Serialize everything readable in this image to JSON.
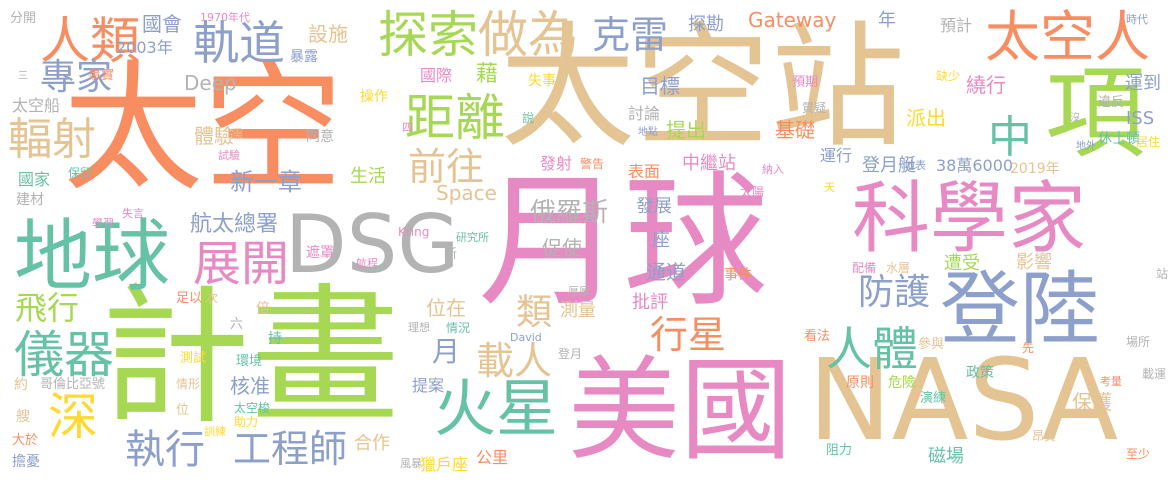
{
  "palette": {
    "orange": "#F98D62",
    "green": "#A6D853",
    "blue": "#8DA0CB",
    "pink": "#E78AC3",
    "tan": "#E5C494",
    "yellow": "#FFD92F",
    "teal": "#66C2A5",
    "gray": "#B3B3B3"
  },
  "words": [
    {
      "text": "太空",
      "color": "orange"
    },
    {
      "text": "太空站",
      "color": "tan"
    },
    {
      "text": "月球",
      "color": "pink"
    },
    {
      "text": "計畫",
      "color": "green"
    },
    {
      "text": "DSG",
      "color": "gray"
    },
    {
      "text": "NASA",
      "color": "tan"
    },
    {
      "text": "美國",
      "color": "pink"
    },
    {
      "text": "登陸",
      "color": "blue"
    },
    {
      "text": "科學家",
      "color": "pink"
    },
    {
      "text": "地球",
      "color": "teal"
    },
    {
      "text": "太空人",
      "color": "orange"
    },
    {
      "text": "項",
      "color": "green"
    },
    {
      "text": "探索",
      "color": "green"
    },
    {
      "text": "做為",
      "color": "tan"
    },
    {
      "text": "人類",
      "color": "orange"
    },
    {
      "text": "軌道",
      "color": "blue"
    },
    {
      "text": "克雷",
      "color": "blue"
    },
    {
      "text": "火星",
      "color": "teal"
    },
    {
      "text": "深",
      "color": "yellow"
    },
    {
      "text": "儀器",
      "color": "teal"
    },
    {
      "text": "展開",
      "color": "pink"
    },
    {
      "text": "距離",
      "color": "green"
    },
    {
      "text": "輻射",
      "color": "tan"
    },
    {
      "text": "專家",
      "color": "blue"
    },
    {
      "text": "前往",
      "color": "tan"
    },
    {
      "text": "中",
      "color": "teal"
    },
    {
      "text": "人體",
      "color": "teal"
    },
    {
      "text": "工程師",
      "color": "blue"
    },
    {
      "text": "執行",
      "color": "blue"
    },
    {
      "text": "載人",
      "color": "tan"
    },
    {
      "text": "行星",
      "color": "orange"
    },
    {
      "text": "防護",
      "color": "blue"
    },
    {
      "text": "飛行",
      "color": "green"
    },
    {
      "text": "航太總署",
      "color": "blue"
    },
    {
      "text": "新一章",
      "color": "blue"
    },
    {
      "text": "俄羅斯",
      "color": "gray"
    },
    {
      "text": "Gateway",
      "color": "orange"
    },
    {
      "text": "Space",
      "color": "tan"
    },
    {
      "text": "Deep",
      "color": "gray"
    },
    {
      "text": "類",
      "color": "tan"
    },
    {
      "text": "月",
      "color": "blue"
    },
    {
      "text": "國會",
      "color": "blue"
    },
    {
      "text": "2003年",
      "color": "blue"
    },
    {
      "text": "設施",
      "color": "tan"
    },
    {
      "text": "探勘",
      "color": "blue"
    },
    {
      "text": "1970年代",
      "color": "pink"
    },
    {
      "text": "分開",
      "color": "gray"
    },
    {
      "text": "事實",
      "color": "orange"
    },
    {
      "text": "暴露",
      "color": "blue"
    },
    {
      "text": "國際",
      "color": "pink"
    },
    {
      "text": "藉",
      "color": "green"
    },
    {
      "text": "失事",
      "color": "yellow"
    },
    {
      "text": "目標",
      "color": "blue"
    },
    {
      "text": "預期",
      "color": "pink"
    },
    {
      "text": "繞行",
      "color": "pink"
    },
    {
      "text": "運到",
      "color": "blue"
    },
    {
      "text": "預計",
      "color": "gray"
    },
    {
      "text": "時代",
      "color": "blue"
    },
    {
      "text": "年",
      "color": "blue"
    },
    {
      "text": "缺少",
      "color": "yellow"
    },
    {
      "text": "太空船",
      "color": "gray"
    },
    {
      "text": "體驗",
      "color": "tan"
    },
    {
      "text": "操作",
      "color": "yellow"
    },
    {
      "text": "同意",
      "color": "gray"
    },
    {
      "text": "討論",
      "color": "gray"
    },
    {
      "text": "提出",
      "color": "green"
    },
    {
      "text": "基礎",
      "color": "orange"
    },
    {
      "text": "派出",
      "color": "yellow"
    },
    {
      "text": "違反",
      "color": "gray"
    },
    {
      "text": "ISS",
      "color": "blue"
    },
    {
      "text": "休士頓",
      "color": "teal"
    },
    {
      "text": "國家",
      "color": "teal"
    },
    {
      "text": "生活",
      "color": "green"
    },
    {
      "text": "保留",
      "color": "teal"
    },
    {
      "text": "發射",
      "color": "pink"
    },
    {
      "text": "警告",
      "color": "orange"
    },
    {
      "text": "表面",
      "color": "orange"
    },
    {
      "text": "中繼站",
      "color": "pink"
    },
    {
      "text": "運行",
      "color": "blue"
    },
    {
      "text": "登月艇",
      "color": "blue"
    },
    {
      "text": "38萬6000",
      "color": "blue"
    },
    {
      "text": "2019年",
      "color": "tan"
    },
    {
      "text": "居住",
      "color": "yellow"
    },
    {
      "text": "建材",
      "color": "gray"
    },
    {
      "text": "發展",
      "color": "blue"
    },
    {
      "text": "太陽",
      "color": "pink"
    },
    {
      "text": "促使",
      "color": "gray"
    },
    {
      "text": "座",
      "color": "blue"
    },
    {
      "text": "通道",
      "color": "blue"
    },
    {
      "text": "事件",
      "color": "orange"
    },
    {
      "text": "遭受",
      "color": "green"
    },
    {
      "text": "影響",
      "color": "tan"
    },
    {
      "text": "配備",
      "color": "pink"
    },
    {
      "text": "水層",
      "color": "tan"
    },
    {
      "text": "位在",
      "color": "tan"
    },
    {
      "text": "測量",
      "color": "tan"
    },
    {
      "text": "批評",
      "color": "pink"
    },
    {
      "text": "核准",
      "color": "blue"
    },
    {
      "text": "合作",
      "color": "tan"
    },
    {
      "text": "公里",
      "color": "orange"
    },
    {
      "text": "獵戶座",
      "color": "yellow"
    },
    {
      "text": "風暴",
      "color": "gray"
    },
    {
      "text": "保護",
      "color": "tan"
    },
    {
      "text": "考量",
      "color": "orange"
    },
    {
      "text": "載運",
      "color": "gray"
    },
    {
      "text": "磁場",
      "color": "teal"
    },
    {
      "text": "至少",
      "color": "orange"
    },
    {
      "text": "阻力",
      "color": "teal"
    },
    {
      "text": "政策",
      "color": "teal"
    },
    {
      "text": "參與",
      "color": "tan"
    },
    {
      "text": "危險",
      "color": "green"
    },
    {
      "text": "原則",
      "color": "orange"
    },
    {
      "text": "看法",
      "color": "orange"
    },
    {
      "text": "演練",
      "color": "teal"
    },
    {
      "text": "提案",
      "color": "blue"
    },
    {
      "text": "擔憂",
      "color": "blue"
    },
    {
      "text": "大於",
      "color": "orange"
    },
    {
      "text": "訓練",
      "color": "yellow"
    },
    {
      "text": "助力",
      "color": "yellow"
    },
    {
      "text": "太空梭",
      "color": "teal"
    },
    {
      "text": "哥倫比亞號",
      "color": "gray"
    },
    {
      "text": "測試",
      "color": "yellow"
    },
    {
      "text": "環境",
      "color": "teal"
    },
    {
      "text": "倍",
      "color": "tan"
    },
    {
      "text": "六",
      "color": "gray"
    },
    {
      "text": "持",
      "color": "teal"
    },
    {
      "text": "理想",
      "color": "gray"
    },
    {
      "text": "情況",
      "color": "teal"
    },
    {
      "text": "David",
      "color": "blue"
    },
    {
      "text": "登月",
      "color": "gray"
    },
    {
      "text": "厚厚",
      "color": "gray"
    },
    {
      "text": "研究所",
      "color": "teal"
    },
    {
      "text": "Kring",
      "color": "pink"
    },
    {
      "text": "遮罩",
      "color": "pink"
    },
    {
      "text": "航程",
      "color": "pink"
    },
    {
      "text": "學習",
      "color": "pink"
    },
    {
      "text": "失言",
      "color": "pink"
    },
    {
      "text": "足以",
      "color": "orange"
    },
    {
      "text": "次",
      "color": "tan"
    },
    {
      "text": "新",
      "color": "gray"
    },
    {
      "text": "試驗",
      "color": "pink"
    },
    {
      "text": "需",
      "color": "tan"
    },
    {
      "text": "四",
      "color": "pink"
    },
    {
      "text": "說",
      "color": "teal"
    },
    {
      "text": "質疑",
      "color": "gray"
    },
    {
      "text": "地點",
      "color": "blue"
    },
    {
      "text": "納入",
      "color": "pink"
    },
    {
      "text": "地外",
      "color": "blue"
    },
    {
      "text": "地表",
      "color": "blue"
    },
    {
      "text": "天",
      "color": "yellow"
    },
    {
      "text": "沒",
      "color": "gray"
    },
    {
      "text": "站",
      "color": "gray"
    },
    {
      "text": "先",
      "color": "orange"
    },
    {
      "text": "場所",
      "color": "gray"
    },
    {
      "text": "昂貴",
      "color": "tan"
    },
    {
      "text": "約",
      "color": "tan"
    },
    {
      "text": "艘",
      "color": "tan"
    },
    {
      "text": "位",
      "color": "tan"
    },
    {
      "text": "情形",
      "color": "tan"
    },
    {
      "text": "三",
      "color": "gray"
    }
  ]
}
